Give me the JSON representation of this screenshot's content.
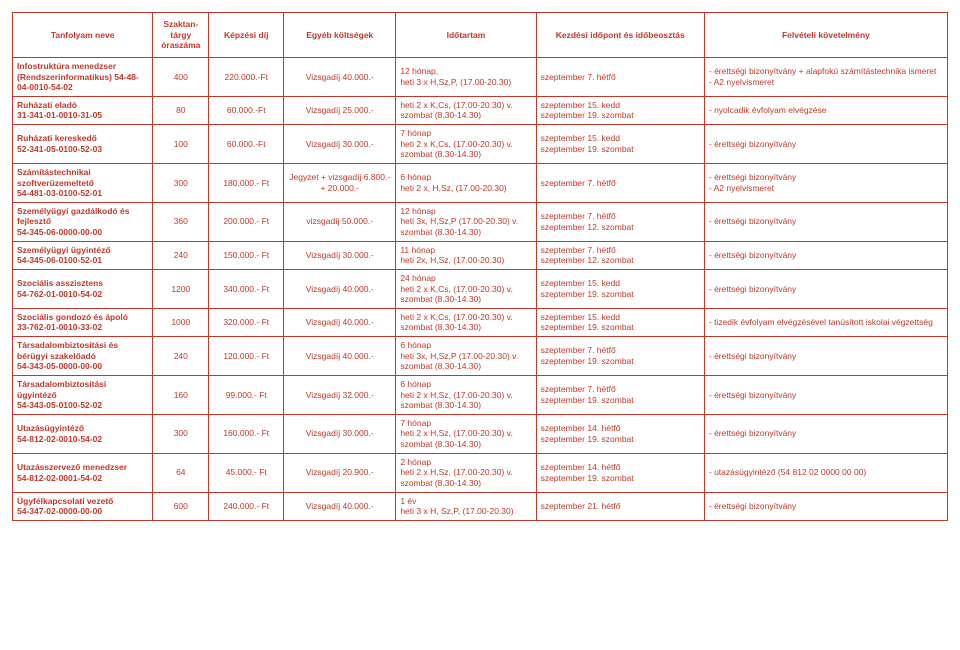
{
  "table": {
    "border_color": "#c0392b",
    "text_color": "#c0392b",
    "font_size": 8.5,
    "columns": [
      "Tanfolyam neve",
      "Szaktan-tárgy óraszáma",
      "Képzési díj",
      "Egyéb költségek",
      "Időtartam",
      "Kezdési időpont és időbeosztás",
      "Felvételi követelmény"
    ],
    "rows": [
      {
        "name": "Infostruktúra menedzser (Rendszerinformatikus) 54-48- 04-0010-54-02",
        "hours": "400",
        "fee": "220.000.-Ft",
        "other": "Vizsgadíj 40.000.-",
        "duration": "12 hónap,\nheti 3 x H,Sz,P, (17.00-20.30)",
        "start": "szeptember 7. hétfő",
        "req": "- érettségi bizonyítvány + alapfokú számítástechnika ismeret\n- A2 nyelvismeret"
      },
      {
        "name": "Ruházati eladó\n31-341-01-0010-31-05",
        "hours": "80",
        "fee": "60.000.-Ft",
        "other": "Vizsgadíj 25.000.-",
        "duration": "heti 2 x K,Cs, (17.00-20.30) v. szombat (8.30-14.30)",
        "start": "szeptember 15. kedd\nszeptember 19. szombat",
        "req": "- nyolcadik évfolyam elvégzése"
      },
      {
        "name": "Ruházati kereskedő\n52-341-05-0100-52-03",
        "hours": "100",
        "fee": "60.000.-Ft",
        "other": "Vizsgadíj 30.000.-",
        "duration": "7 hónap\nheti 2 x K,Cs, (17.00-20.30) v. szombat (8.30-14.30)",
        "start": "szeptember 15. kedd\nszeptember 19. szombat",
        "req": "- érettségi bizonyítvány"
      },
      {
        "name": "Számítástechnikai szoftverüzemeltető\n54-481-03-0100-52-01",
        "hours": "300",
        "fee": "180.000.- Ft",
        "other": "Jegyzet + vizsgadíj 6.800.- + 20.000.-",
        "duration": "6 hónap\nheti 2 x, H,Sz, (17.00-20.30)",
        "start": "szeptember 7. hétfő",
        "req": "- érettségi bizonyítvány\n- A2 nyelvismeret"
      },
      {
        "name": "Személyügyi gazdálkodó és fejlesztő\n54-345-06-0000-00-00",
        "hours": "360",
        "fee": "200.000.- Ft",
        "other": "vizsgadíj 50.000.-",
        "duration": "12 hónap\nheti 3x, H,Sz,P (17.00-20.30) v. szombat (8.30-14.30)",
        "start": "szeptember 7. hétfő\nszeptember 12. szombat",
        "req": "- érettségi bizonyítvány"
      },
      {
        "name": "Személyügyi ügyintéző\n54-345-06-0100-52-01",
        "hours": "240",
        "fee": "150.000.- Ft",
        "other": "Vizsgadíj 30.000.-",
        "duration": "11 hónap\nheti 2x, H,Sz, (17.00-20.30)",
        "start": "szeptember 7. hétfő\nszeptember 12. szombat",
        "req": "- érettségi bizonyítvány"
      },
      {
        "name": "Szociális asszisztens\n54-762-01-0010-54-02",
        "hours": "1200",
        "fee": "340.000.- Ft",
        "other": "Vizsgadíj 40.000.-",
        "duration": "24 hónap\nheti 2 x K,Cs, (17.00-20.30) v. szombat (8.30-14.30)",
        "start": "szeptember 15. kedd\nszeptember 19. szombat",
        "req": "- érettségi bizonyítvány"
      },
      {
        "name": "Szociális gondozó és ápoló\n33-762-01-0010-33-02",
        "hours": "1000",
        "fee": "320.000.- Ft",
        "other": "Vizsgadíj 40.000.-",
        "duration": "heti 2 x K,Cs, (17.00-20.30) v. szombat (8.30-14.30)",
        "start": "szeptember 15. kedd\nszeptember 19. szombat",
        "req": "- tizedik évfolyam elvégzésével tanúsított iskolai végzettség"
      },
      {
        "name": "Társadalombiztosítási és bérügyi szakelőadó\n54-343-05-0000-00-00",
        "hours": "240",
        "fee": "120.000.- Ft",
        "other": "Vizsgadíj 40.000.-",
        "duration": "6 hónap\nheti 3x, H,Sz,P (17.00-20.30) v. szombat (8.30-14.30)",
        "start": "szeptember 7. hétfő\nszeptember 19. szombat",
        "req": "- érettségi bizonyítvány"
      },
      {
        "name": "Társadalombiztosítási ügyintéző\n54-343-05-0100-52-02",
        "hours": "160",
        "fee": "99.000.- Ft",
        "other": "Vizsgadíj 32.000.-",
        "duration": "6 hónap\nheti 2 x H,Sz, (17.00-20.30) v. szombat (8.30-14.30)",
        "start": "szeptember 7. hétfő\nszeptember 19. szombat",
        "req": "- érettségi bizonyítvány"
      },
      {
        "name": "Utazásügyintéző\n54-812-02-0010-54-02",
        "hours": "300",
        "fee": "160.000.- Ft",
        "other": "Vizsgadíj 30.000.-",
        "duration": "7 hónap\nheti 2 x H,Sz, (17.00-20.30) v. szombat (8.30-14.30)",
        "start": "szeptember 14. hétfő\nszeptember 19. szombat",
        "req": "- érettségi bizonyítvány"
      },
      {
        "name": "Utazásszervező menedzser\n54-812-02-0001-54-02",
        "hours": "64",
        "fee": "45.000.- Ft",
        "other": "Vizsgadíj 20.900.-",
        "duration": "2 hónap\nheti 2 x H,Sz, (17.00-20.30) v. szombat (8.30-14.30)",
        "start": "szeptember 14. hétfő\nszeptember 19. szombat",
        "req": "- utazásügyintéző (54 812 02 0000 00 00)"
      },
      {
        "name": "Ügyfélkapcsolati vezető\n54-347-02-0000-00-00",
        "hours": "600",
        "fee": "240.000.- Ft",
        "other": "Vizsgadíj 40.000.-",
        "duration": "1 év\nheti 3 x H, Sz,P, (17.00-20.30)",
        "start": "szeptember 21. hétfő",
        "req": "- érettségi bizonyítvány"
      }
    ]
  }
}
